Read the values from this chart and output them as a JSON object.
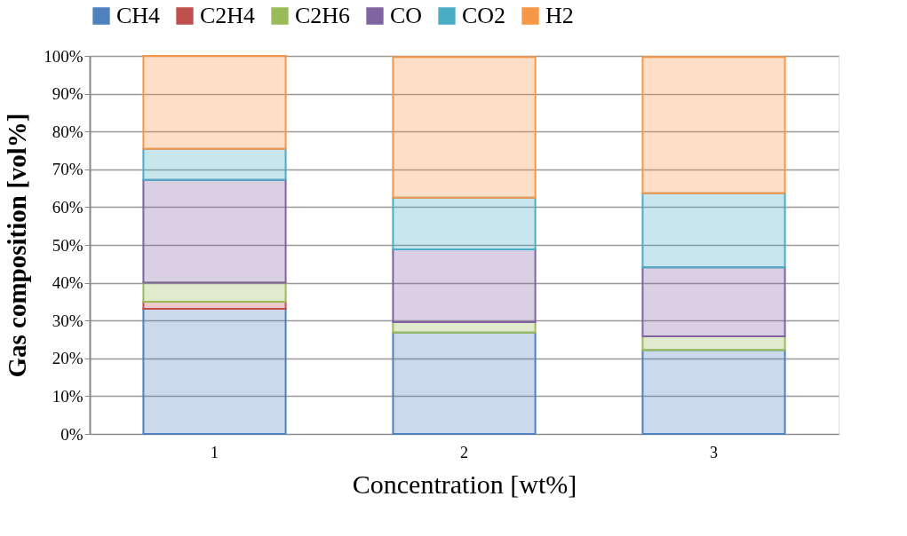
{
  "chart_data": {
    "type": "bar",
    "stacked": true,
    "xlabel": "Concentration [wt%]",
    "ylabel": "Gas composition [vol%]",
    "categories": [
      "1",
      "2",
      "3"
    ],
    "series": [
      {
        "name": "CH4",
        "color": "#4f81bd",
        "values": [
          33.1,
          26.8,
          22.2
        ]
      },
      {
        "name": "C2H4",
        "color": "#c0504d",
        "values": [
          1.9,
          null,
          null
        ]
      },
      {
        "name": "C2H6",
        "color": "#9bbb59",
        "values": [
          5.0,
          2.8,
          3.6
        ]
      },
      {
        "name": "CO",
        "color": "#8064a2",
        "values": [
          27.2,
          19.2,
          18.3
        ]
      },
      {
        "name": "CO2",
        "color": "#4bacc6",
        "values": [
          8.2,
          13.7,
          19.6
        ]
      },
      {
        "name": "H2",
        "color": "#f79646",
        "values": [
          24.6,
          37.2,
          36.0
        ]
      }
    ],
    "ylim": [
      0,
      100
    ],
    "yticks": [
      {
        "value": 0,
        "label": "0%"
      },
      {
        "value": 10,
        "label": "10%"
      },
      {
        "value": 20,
        "label": "20%"
      },
      {
        "value": 30,
        "label": "30%"
      },
      {
        "value": 40,
        "label": "40%"
      },
      {
        "value": 50,
        "label": "50%"
      },
      {
        "value": 60,
        "label": "60%"
      },
      {
        "value": 70,
        "label": "70%"
      },
      {
        "value": 80,
        "label": "80%"
      },
      {
        "value": 90,
        "label": "90%"
      },
      {
        "value": 100,
        "label": "100%"
      }
    ],
    "grid": "y",
    "legend": "top"
  }
}
